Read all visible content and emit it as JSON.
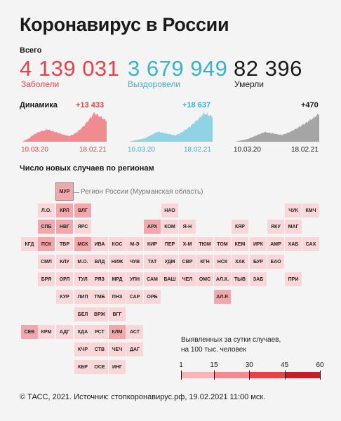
{
  "title": "Коронавирус в России",
  "totals": {
    "label": "Всего",
    "cases": {
      "value": "4 139 031",
      "label": "Заболели",
      "color": "#e8414a"
    },
    "recovered": {
      "value": "3 679 949",
      "label": "Выздоровели",
      "color": "#35b3cf"
    },
    "deaths": {
      "value": "82 396",
      "label": "Умерли",
      "color": "#1a1a1a"
    }
  },
  "dynamics": {
    "label": "Динамика",
    "cases": {
      "delta": "+13 433",
      "start": "10.03.20",
      "end": "18.02.21",
      "color": "#f08b8f"
    },
    "recovered": {
      "delta": "+18 637",
      "start": "10.03.20",
      "end": "18.02.21",
      "color": "#8fd3e4"
    },
    "deaths": {
      "delta": "+470",
      "start": "10.03.20",
      "end": "18.02.21",
      "color": "#a5a5a5"
    }
  },
  "regions_title": "Число новых случаев по регионам",
  "annotation": "Регион России (Мурманская область)",
  "legend": {
    "line1": "Выявленных за сутки случаев,",
    "line2": "на 100 тыс. человек",
    "ticks": [
      "1",
      "15",
      "30",
      "45",
      "60"
    ]
  },
  "footer": "© ТАСС, 2021. Источник: стопкоронавирус.рф, 19.02.2021 11:00 мск.",
  "chart_data": {
    "type": "heatmap",
    "title": "Число новых случаев по регионам",
    "scale": {
      "min": 1,
      "max": 60,
      "ticks": [
        1,
        15,
        30,
        45,
        60
      ],
      "colors": [
        "#fbdcdc",
        "#f7b5b7",
        "#f08b8f",
        "#e8414a",
        "#c51e2a"
      ]
    },
    "regions": [
      {
        "name": "МУР",
        "level": 2,
        "outlined": true
      },
      {
        "name": "Л.О.",
        "level": 1
      },
      {
        "name": "КРЛ",
        "level": 2
      },
      {
        "name": "ВЛГ",
        "level": 2
      },
      {
        "name": "НАО",
        "level": 1
      },
      {
        "name": "ЧУК",
        "level": 1
      },
      {
        "name": "КМЧ",
        "level": 1
      },
      {
        "name": "СПБ",
        "level": 2
      },
      {
        "name": "НВГ",
        "level": 2
      },
      {
        "name": "ЯРС",
        "level": 1
      },
      {
        "name": "АРХ",
        "level": 2
      },
      {
        "name": "КОМ",
        "level": 1
      },
      {
        "name": "Я-Н",
        "level": 1
      },
      {
        "name": "КЯР",
        "level": 1
      },
      {
        "name": "ЯКУ",
        "level": 1
      },
      {
        "name": "МАГ",
        "level": 1
      },
      {
        "name": "КГД",
        "level": 1
      },
      {
        "name": "ПСК",
        "level": 2
      },
      {
        "name": "ТВР",
        "level": 1
      },
      {
        "name": "МСК",
        "level": 2
      },
      {
        "name": "ИВА",
        "level": 1
      },
      {
        "name": "КОС",
        "level": 1
      },
      {
        "name": "М-Э",
        "level": 1
      },
      {
        "name": "КИР",
        "level": 1
      },
      {
        "name": "ПЕР",
        "level": 1
      },
      {
        "name": "Х-М",
        "level": 1
      },
      {
        "name": "ТЮМ",
        "level": 1
      },
      {
        "name": "ТОМ",
        "level": 1
      },
      {
        "name": "КЕМ",
        "level": 1
      },
      {
        "name": "ИРК",
        "level": 1
      },
      {
        "name": "АМР",
        "level": 1
      },
      {
        "name": "ХАБ",
        "level": 1
      },
      {
        "name": "САХ",
        "level": 1
      },
      {
        "name": "СМЛ",
        "level": 1
      },
      {
        "name": "КЛУ",
        "level": 1
      },
      {
        "name": "М.О.",
        "level": 1
      },
      {
        "name": "ВЛД",
        "level": 1
      },
      {
        "name": "НИЖ",
        "level": 1
      },
      {
        "name": "ЧУВ",
        "level": 1
      },
      {
        "name": "ТАТ",
        "level": 1
      },
      {
        "name": "УДМ",
        "level": 1
      },
      {
        "name": "СВР",
        "level": 1
      },
      {
        "name": "КГН",
        "level": 1
      },
      {
        "name": "НСК",
        "level": 1
      },
      {
        "name": "ХАК",
        "level": 1
      },
      {
        "name": "БУР",
        "level": 1
      },
      {
        "name": "ЕАО",
        "level": 1
      },
      {
        "name": "БРЯ",
        "level": 1
      },
      {
        "name": "ОРЛ",
        "level": 1
      },
      {
        "name": "ТУЛ",
        "level": 1
      },
      {
        "name": "РЯЗ",
        "level": 1
      },
      {
        "name": "МРД",
        "level": 1
      },
      {
        "name": "УЛН",
        "level": 1
      },
      {
        "name": "САМ",
        "level": 1
      },
      {
        "name": "БАШ",
        "level": 1
      },
      {
        "name": "ЧЕЛ",
        "level": 1
      },
      {
        "name": "ОМС",
        "level": 1
      },
      {
        "name": "АЛ.К.",
        "level": 1
      },
      {
        "name": "ТЫВ",
        "level": 1
      },
      {
        "name": "ЗАБ",
        "level": 1
      },
      {
        "name": "ПРИ",
        "level": 1
      },
      {
        "name": "КУР",
        "level": 1
      },
      {
        "name": "ЛИП",
        "level": 1
      },
      {
        "name": "ТМБ",
        "level": 1
      },
      {
        "name": "ПНЗ",
        "level": 1
      },
      {
        "name": "САР",
        "level": 1
      },
      {
        "name": "ОРБ",
        "level": 1
      },
      {
        "name": "АЛ.Р.",
        "level": 2
      },
      {
        "name": "БЕЛ",
        "level": 1
      },
      {
        "name": "ВРЖ",
        "level": 1
      },
      {
        "name": "ВГГ",
        "level": 1
      },
      {
        "name": "СЕВ",
        "level": 2
      },
      {
        "name": "КРМ",
        "level": 1
      },
      {
        "name": "АДГ",
        "level": 1
      },
      {
        "name": "КДА",
        "level": 1
      },
      {
        "name": "РСТ",
        "level": 1
      },
      {
        "name": "КЛМ",
        "level": 2
      },
      {
        "name": "АСТ",
        "level": 1
      },
      {
        "name": "КЧР",
        "level": 1
      },
      {
        "name": "СТВ",
        "level": 1
      },
      {
        "name": "ЧЕЧ",
        "level": 1
      },
      {
        "name": "ДАГ",
        "level": 1
      },
      {
        "name": "КБР",
        "level": 1
      },
      {
        "name": "ОСЕ",
        "level": 1
      },
      {
        "name": "ИНГ",
        "level": 1
      }
    ]
  }
}
